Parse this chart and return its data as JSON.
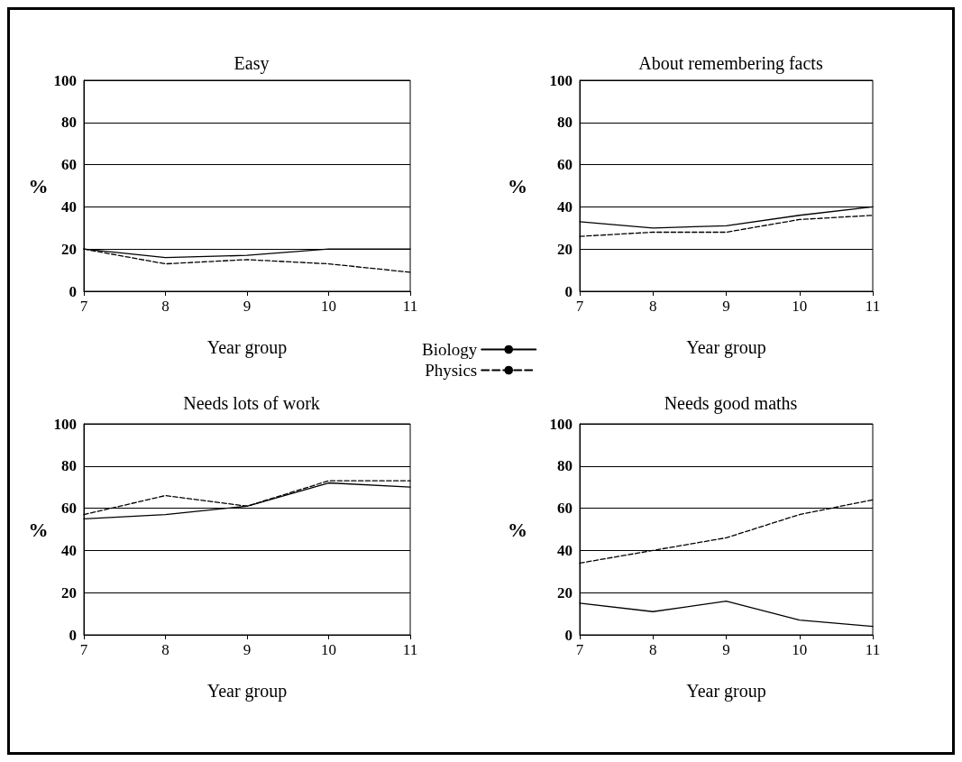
{
  "chart_data": [
    {
      "type": "line",
      "title": "Easy",
      "xlabel": "Year group",
      "ylabel": "%",
      "x": [
        7,
        8,
        9,
        10,
        11
      ],
      "xlim": [
        7,
        11
      ],
      "xticks": [
        7,
        8,
        9,
        10,
        11
      ],
      "ylim": [
        0,
        100
      ],
      "yticks": [
        0,
        20,
        40,
        60,
        80,
        100
      ],
      "grid": "y",
      "legend": "bottom right",
      "series": [
        {
          "name": "Biology",
          "color": "#000000",
          "line_style": "solid",
          "values": [
            20,
            16,
            17,
            20,
            20
          ]
        },
        {
          "name": "Physics",
          "color": "#000000",
          "line_style": "dashed",
          "values": [
            20,
            13,
            15,
            13,
            9
          ]
        }
      ]
    },
    {
      "type": "line",
      "title": "About remembering facts",
      "xlabel": "Year group",
      "ylabel": "%",
      "x": [
        7,
        8,
        9,
        10,
        11
      ],
      "xlim": [
        7,
        11
      ],
      "xticks": [
        7,
        8,
        9,
        10,
        11
      ],
      "ylim": [
        0,
        100
      ],
      "yticks": [
        0,
        20,
        40,
        60,
        80,
        100
      ],
      "grid": "y",
      "series": [
        {
          "color": "#000000",
          "line_style": "solid",
          "values": [
            33,
            30,
            31,
            36,
            40
          ]
        },
        {
          "color": "#000000",
          "line_style": "dashed",
          "values": [
            26,
            28,
            28,
            34,
            36
          ]
        }
      ]
    },
    {
      "type": "line",
      "title": "Needs lots of work",
      "xlabel": "Year group",
      "ylabel": "%",
      "x": [
        7,
        8,
        9,
        10,
        11
      ],
      "xlim": [
        7,
        11
      ],
      "xticks": [
        7,
        8,
        9,
        10,
        11
      ],
      "ylim": [
        0,
        100
      ],
      "yticks": [
        0,
        20,
        40,
        60,
        80,
        100
      ],
      "grid": "y",
      "series": [
        {
          "color": "#000000",
          "line_style": "solid",
          "values": [
            55,
            57,
            61,
            72,
            70
          ]
        },
        {
          "color": "#000000",
          "line_style": "dashed",
          "values": [
            57,
            66,
            61,
            73,
            73
          ]
        }
      ]
    },
    {
      "type": "line",
      "title": "Needs good maths",
      "xlabel": "Year group",
      "ylabel": "%",
      "x": [
        7,
        8,
        9,
        10,
        11
      ],
      "xlim": [
        7,
        11
      ],
      "xticks": [
        7,
        8,
        9,
        10,
        11
      ],
      "ylim": [
        0,
        100
      ],
      "yticks": [
        0,
        20,
        40,
        60,
        80,
        100
      ],
      "grid": "y",
      "series": [
        {
          "color": "#000000",
          "line_style": "solid",
          "values": [
            15,
            11,
            16,
            7,
            4
          ]
        },
        {
          "color": "#000000",
          "line_style": "dashed",
          "values": [
            34,
            40,
            46,
            57,
            64
          ]
        }
      ]
    }
  ]
}
